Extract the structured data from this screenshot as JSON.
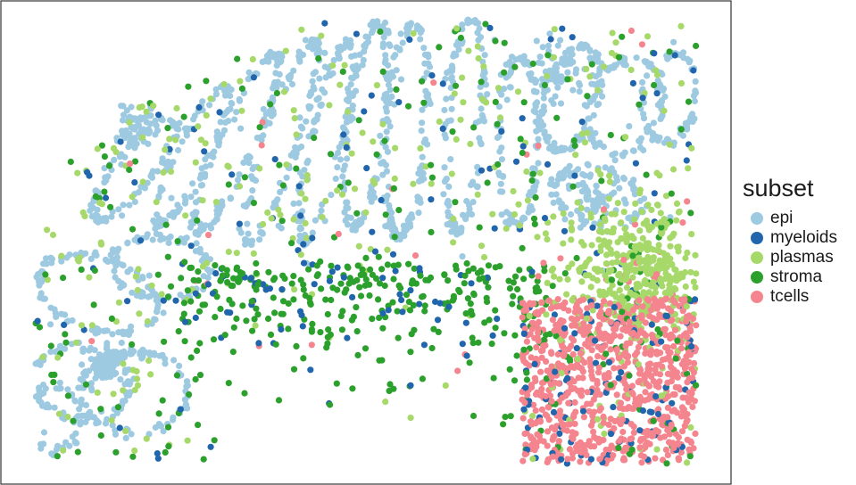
{
  "chart_data": {
    "type": "scatter",
    "title": "",
    "xlabel": "",
    "ylabel": "",
    "axes_shown": false,
    "grid": false,
    "panel_border": true,
    "legend_position": "right",
    "legend_title": "subset",
    "xlim": [
      0,
      1
    ],
    "ylim": [
      0,
      1
    ],
    "series": [
      {
        "name": "epi",
        "color": "#9ecae1",
        "description_regions": "crypt outlines along upper half and left side"
      },
      {
        "name": "myeloids",
        "color": "#2166ac",
        "description_regions": "scattered throughout"
      },
      {
        "name": "plasmas",
        "color": "#a6d96a",
        "description_regions": "between crypts, dense cluster upper right of lymphoid aggregate"
      },
      {
        "name": "stroma",
        "color": "#2ca02c",
        "description_regions": "lower central band and scattered"
      },
      {
        "name": "tcells",
        "color": "#f4858e",
        "description_regions": "dense aggregate lower right"
      }
    ]
  }
}
